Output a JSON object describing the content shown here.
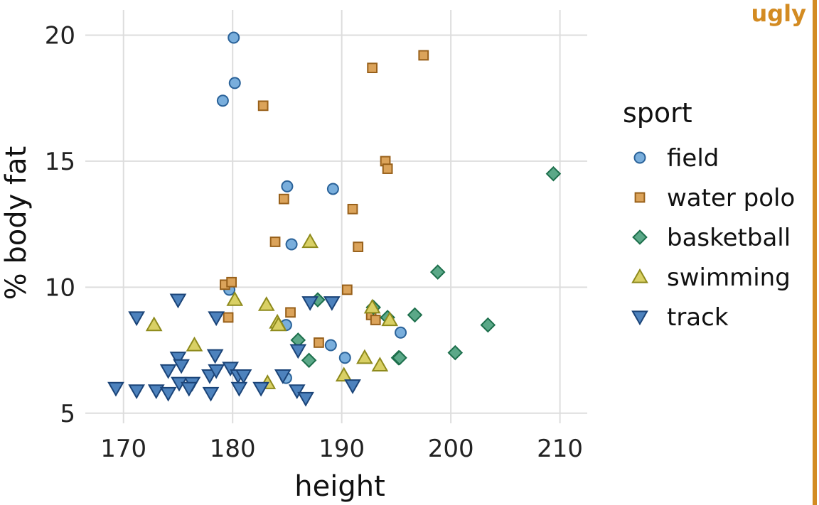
{
  "tag_label": "ugly",
  "chart_data": {
    "type": "scatter",
    "xlabel": "height",
    "ylabel": "% body fat",
    "xlim": [
      166.5,
      212.5
    ],
    "ylim": [
      4.6,
      21.0
    ],
    "x_ticks": [
      170,
      180,
      190,
      200,
      210
    ],
    "y_ticks": [
      5,
      10,
      15,
      20
    ],
    "grid": true,
    "legend": {
      "title": "sport",
      "placement": "right"
    },
    "colors": {
      "tag": "#d38b22",
      "grid": "#dddddd",
      "field": {
        "fill": "#79aedc",
        "stroke": "#2a6299"
      },
      "water polo": {
        "fill": "#dba35a",
        "stroke": "#98601a"
      },
      "basketball": {
        "fill": "#5ba888",
        "stroke": "#1d6f4c"
      },
      "swimming": {
        "fill": "#d9d065",
        "stroke": "#8e8a1c"
      },
      "track": {
        "fill": "#4d82bd",
        "stroke": "#1b4478"
      }
    },
    "series": [
      {
        "name": "field",
        "marker": "circle",
        "points": [
          [
            180.1,
            19.9
          ],
          [
            180.2,
            18.1
          ],
          [
            179.1,
            17.4
          ],
          [
            185.0,
            14.0
          ],
          [
            189.2,
            13.9
          ],
          [
            185.4,
            11.7
          ],
          [
            179.7,
            9.9
          ],
          [
            184.9,
            8.5
          ],
          [
            195.4,
            8.2
          ],
          [
            189.0,
            7.7
          ],
          [
            190.3,
            7.2
          ],
          [
            184.9,
            6.4
          ]
        ]
      },
      {
        "name": "water polo",
        "marker": "square",
        "points": [
          [
            197.5,
            19.2
          ],
          [
            192.8,
            18.7
          ],
          [
            182.8,
            17.2
          ],
          [
            194.0,
            15.0
          ],
          [
            194.2,
            14.7
          ],
          [
            184.7,
            13.5
          ],
          [
            191.0,
            13.1
          ],
          [
            183.9,
            11.8
          ],
          [
            191.5,
            11.6
          ],
          [
            179.3,
            10.1
          ],
          [
            179.9,
            10.2
          ],
          [
            190.5,
            9.9
          ],
          [
            179.6,
            8.8
          ],
          [
            185.3,
            9.0
          ],
          [
            192.7,
            8.9
          ],
          [
            193.1,
            8.7
          ],
          [
            187.9,
            7.8
          ]
        ]
      },
      {
        "name": "basketball",
        "marker": "diamond",
        "points": [
          [
            209.4,
            14.5
          ],
          [
            198.8,
            10.6
          ],
          [
            187.8,
            9.5
          ],
          [
            192.9,
            9.2
          ],
          [
            194.2,
            8.8
          ],
          [
            196.7,
            8.9
          ],
          [
            203.4,
            8.5
          ],
          [
            186.0,
            7.9
          ],
          [
            200.4,
            7.4
          ],
          [
            195.2,
            7.2
          ],
          [
            195.3,
            7.2
          ],
          [
            187.0,
            7.1
          ]
        ]
      },
      {
        "name": "swimming",
        "marker": "triangle-up",
        "points": [
          [
            187.1,
            11.8
          ],
          [
            180.2,
            9.5
          ],
          [
            183.1,
            9.3
          ],
          [
            192.8,
            9.2
          ],
          [
            184.1,
            8.6
          ],
          [
            184.2,
            8.5
          ],
          [
            194.4,
            8.7
          ],
          [
            172.8,
            8.5
          ],
          [
            176.5,
            7.7
          ],
          [
            192.1,
            7.2
          ],
          [
            193.5,
            6.9
          ],
          [
            190.2,
            6.5
          ],
          [
            183.2,
            6.2
          ]
        ]
      },
      {
        "name": "track",
        "marker": "triangle-down",
        "points": [
          [
            175.0,
            9.5
          ],
          [
            171.2,
            8.8
          ],
          [
            178.5,
            8.8
          ],
          [
            187.1,
            9.4
          ],
          [
            189.1,
            9.4
          ],
          [
            175.0,
            7.2
          ],
          [
            175.3,
            6.9
          ],
          [
            174.1,
            6.7
          ],
          [
            178.4,
            7.3
          ],
          [
            186.0,
            7.5
          ],
          [
            177.9,
            6.5
          ],
          [
            178.5,
            6.7
          ],
          [
            179.8,
            6.8
          ],
          [
            180.5,
            6.5
          ],
          [
            181.0,
            6.5
          ],
          [
            184.6,
            6.5
          ],
          [
            175.1,
            6.2
          ],
          [
            176.3,
            6.2
          ],
          [
            169.3,
            6.0
          ],
          [
            171.2,
            5.9
          ],
          [
            173.0,
            5.9
          ],
          [
            174.1,
            5.8
          ],
          [
            176.0,
            6.0
          ],
          [
            178.0,
            5.8
          ],
          [
            180.6,
            6.0
          ],
          [
            182.6,
            6.0
          ],
          [
            185.9,
            5.9
          ],
          [
            186.7,
            5.6
          ],
          [
            191.0,
            6.1
          ]
        ]
      }
    ]
  }
}
